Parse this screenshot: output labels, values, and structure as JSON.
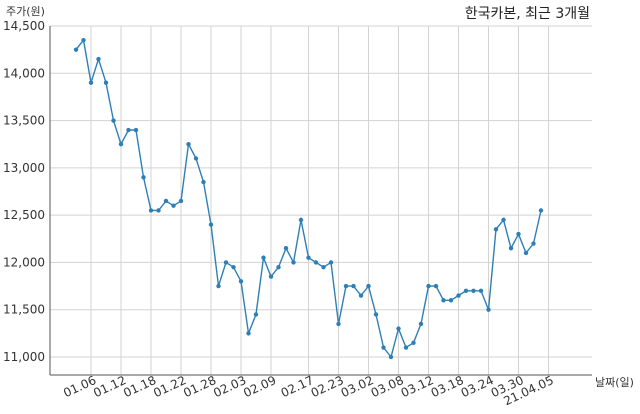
{
  "chart_data": {
    "type": "line",
    "title": "한국카본, 최근 3개월",
    "ylabel": "주가(원)",
    "xlabel": "날짜(일)",
    "ylim": [
      10800,
      14500
    ],
    "yticks": [
      11000,
      11500,
      12000,
      12500,
      13000,
      13500,
      14000,
      14500
    ],
    "ytick_labels": [
      "11,000",
      "11,500",
      "12,000",
      "12,500",
      "13,000",
      "13,500",
      "14,000",
      "14,500"
    ],
    "xtick_labels": [
      "01.06",
      "01.12",
      "01.18",
      "01.22",
      "01.28",
      "02.03",
      "02.09",
      "02.17",
      "02.23",
      "03.02",
      "03.08",
      "03.12",
      "03.18",
      "03.24",
      "03.30",
      "21.04.05"
    ],
    "xtick_index": [
      2,
      6,
      10,
      14,
      18,
      22,
      26,
      31,
      35,
      39,
      43,
      47,
      51,
      55,
      59,
      63
    ],
    "grid": true,
    "color": "#2e7fb5",
    "series": [
      {
        "values": [
          14250,
          14350,
          13900,
          14150,
          13900,
          13500,
          13250,
          13400,
          13400,
          12900,
          12550,
          12550,
          12650,
          12600,
          12650,
          13250,
          13100,
          12850,
          12400,
          11750,
          12000,
          11950,
          11800,
          11250,
          11450,
          12050,
          11850,
          11950,
          12150,
          12000,
          12450,
          12050,
          12000,
          11950,
          12000,
          11350,
          11750,
          11750,
          11650,
          11750,
          11450,
          11100,
          11000,
          11300,
          11100,
          11150,
          11350,
          11750,
          11750,
          11600,
          11600,
          11650,
          11700,
          11700,
          11700,
          11500,
          12350,
          12450,
          12150,
          12300,
          12100,
          12200,
          12550
        ]
      }
    ]
  }
}
